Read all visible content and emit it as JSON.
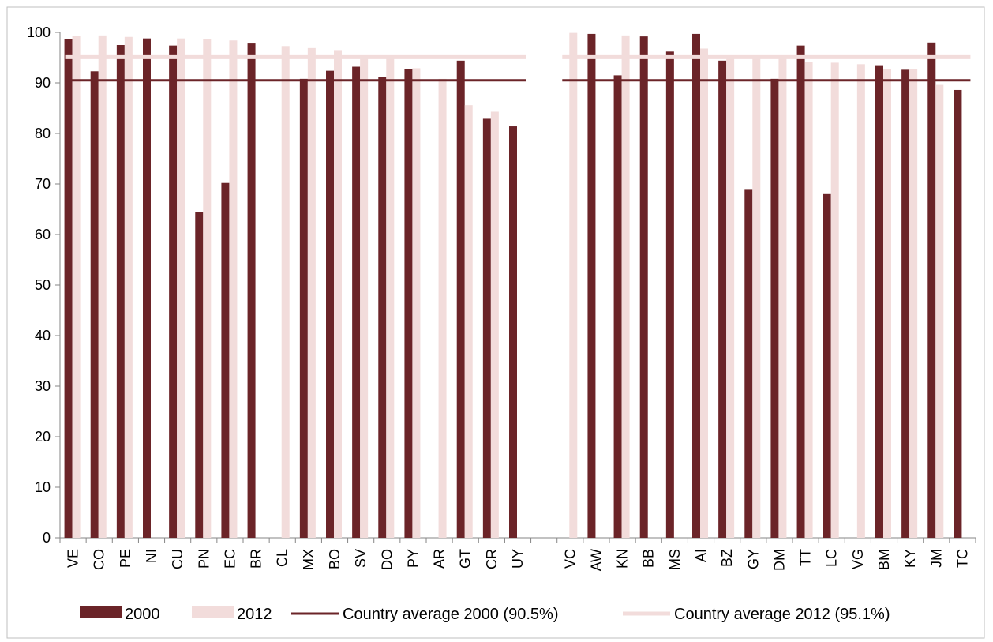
{
  "chart_data": {
    "type": "bar",
    "categories": [
      "VE",
      "CO",
      "PE",
      "NI",
      "CU",
      "PN",
      "EC",
      "BR",
      "CL",
      "MX",
      "BO",
      "SV",
      "DO",
      "PY",
      "AR",
      "GT",
      "CR",
      "UY",
      "",
      "VC",
      "AW",
      "KN",
      "BB",
      "MS",
      "AI",
      "BZ",
      "GY",
      "DM",
      "TT",
      "LC",
      "VG",
      "BM",
      "KY",
      "JM",
      "TC"
    ],
    "series": [
      {
        "name": "2000",
        "color": "#6b2428",
        "values": [
          98.7,
          92.3,
          97.5,
          98.8,
          97.4,
          64.4,
          70.2,
          97.8,
          null,
          90.8,
          92.4,
          93.2,
          91.2,
          92.8,
          null,
          94.4,
          82.9,
          81.4,
          null,
          null,
          99.7,
          91.5,
          99.2,
          96.2,
          99.7,
          94.4,
          69.0,
          90.8,
          97.4,
          68.0,
          null,
          93.5,
          92.6,
          98.0,
          88.6
        ]
      },
      {
        "name": "2012",
        "color": "#f2dcdb",
        "values": [
          99.3,
          99.4,
          99.1,
          null,
          98.8,
          98.7,
          98.4,
          null,
          97.3,
          96.9,
          96.5,
          95.1,
          94.9,
          92.9,
          90.8,
          85.6,
          84.3,
          null,
          null,
          99.9,
          null,
          99.4,
          null,
          null,
          96.8,
          95.0,
          94.9,
          94.9,
          94.1,
          94.0,
          93.7,
          92.7,
          92.7,
          89.6,
          null
        ]
      }
    ],
    "reference_lines": [
      {
        "name": "Country average 2000 (90.5%)",
        "value": 90.5,
        "color": "#6b2428"
      },
      {
        "name": "Country average 2012 (95.1%)",
        "value": 95.1,
        "color": "#f2dcdb"
      }
    ],
    "groups": [
      {
        "from": 0,
        "to": 17
      },
      {
        "from": 19,
        "to": 34
      }
    ],
    "ylim": [
      0,
      100
    ],
    "yticks": [
      0,
      10,
      20,
      30,
      40,
      50,
      60,
      70,
      80,
      90,
      100
    ],
    "grid": false,
    "legend_position": "bottom",
    "title": "",
    "xlabel": "",
    "ylabel": ""
  }
}
